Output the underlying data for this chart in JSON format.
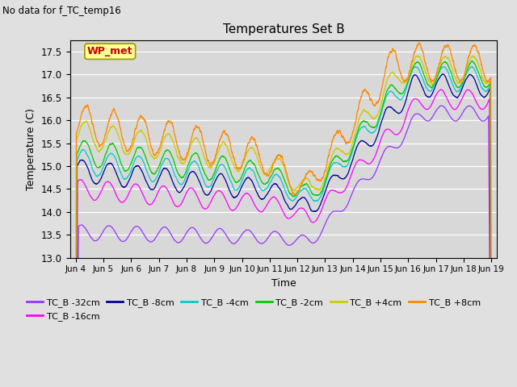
{
  "title": "Temperatures Set B",
  "subtitle": "No data for f_TC_temp16",
  "xlabel": "Time",
  "ylabel": "Temperature (C)",
  "ylim": [
    13.0,
    17.75
  ],
  "yticks": [
    13.0,
    13.5,
    14.0,
    14.5,
    15.0,
    15.5,
    16.0,
    16.5,
    17.0,
    17.5
  ],
  "xtick_labels": [
    "Jun 4",
    "Jun 5",
    "Jun 6",
    "Jun 7",
    "Jun 8",
    "Jun 9",
    "Jun 10",
    "Jun 11",
    "Jun 12",
    "Jun 13",
    "Jun 14",
    "Jun 15",
    "Jun 16",
    "Jun 17",
    "Jun 18",
    "Jun 19"
  ],
  "series": [
    {
      "label": "TC_B -32cm",
      "color": "#9933FF"
    },
    {
      "label": "TC_B -16cm",
      "color": "#FF00FF"
    },
    {
      "label": "TC_B -8cm",
      "color": "#000099"
    },
    {
      "label": "TC_B -4cm",
      "color": "#00CCCC"
    },
    {
      "label": "TC_B -2cm",
      "color": "#00CC00"
    },
    {
      "label": "TC_B +4cm",
      "color": "#CCCC00"
    },
    {
      "label": "TC_B +8cm",
      "color": "#FF8800"
    }
  ],
  "wp_met_box_facecolor": "#FFFF99",
  "wp_met_box_edgecolor": "#999900",
  "wp_met_text_color": "#CC0000",
  "plot_bg_color": "#D8D8D8",
  "fig_bg_color": "#E0E0E0",
  "grid_color": "#FFFFFF",
  "n_points": 4320,
  "legend_ncol": 6,
  "legend_row2_ncol": 1
}
